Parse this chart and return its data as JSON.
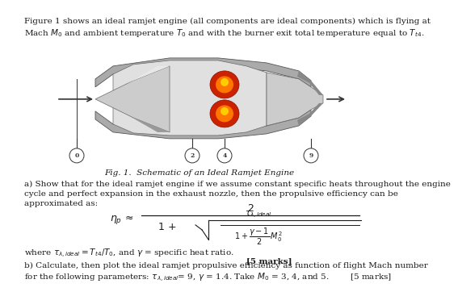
{
  "title_text1": "Figure 1 shows an ideal ramjet engine (all components are ideal components) which is flying at",
  "title_text2": "Mach $M_0$ and ambient temperature $T_0$ and with the burner exit total temperature equal to $T_{t4}$.",
  "fig_label": "Fig. 1.  Schematic of an Ideal Ramjet Engine",
  "part_a_line1": "a) Show that for the ideal ramjet engine if we assume constant specific heats throughout the engine",
  "part_a_line2": "cycle and perfect expansion in the exhaust nozzle, then the propulsive efficiency can be",
  "part_a_line3": "approximated as:",
  "where_text": "where $\\tau_{\\lambda,ideal} = T_{t4}/T_0$, and $\\gamma$ = specific heat ratio.",
  "marks_a": "[5 marks]",
  "part_b_line1": "b) Calculate, then plot the ideal ramjet propulsive efficiency as function of flight Mach number",
  "part_b_line2": "for the following parameters: $\\tau_{\\lambda,ideal}$= 9, $\\gamma$ = 1.4. Take $M_0$ = 3, 4, and 5.        [5 marks]",
  "bg_color": "#ffffff",
  "text_color": "#1a1a1a",
  "formula_color": "#1a1a1a",
  "engine_gray_dark": "#888888",
  "engine_gray_mid": "#aaaaaa",
  "engine_gray_light": "#cccccc",
  "engine_gray_lightest": "#e0e0e0"
}
